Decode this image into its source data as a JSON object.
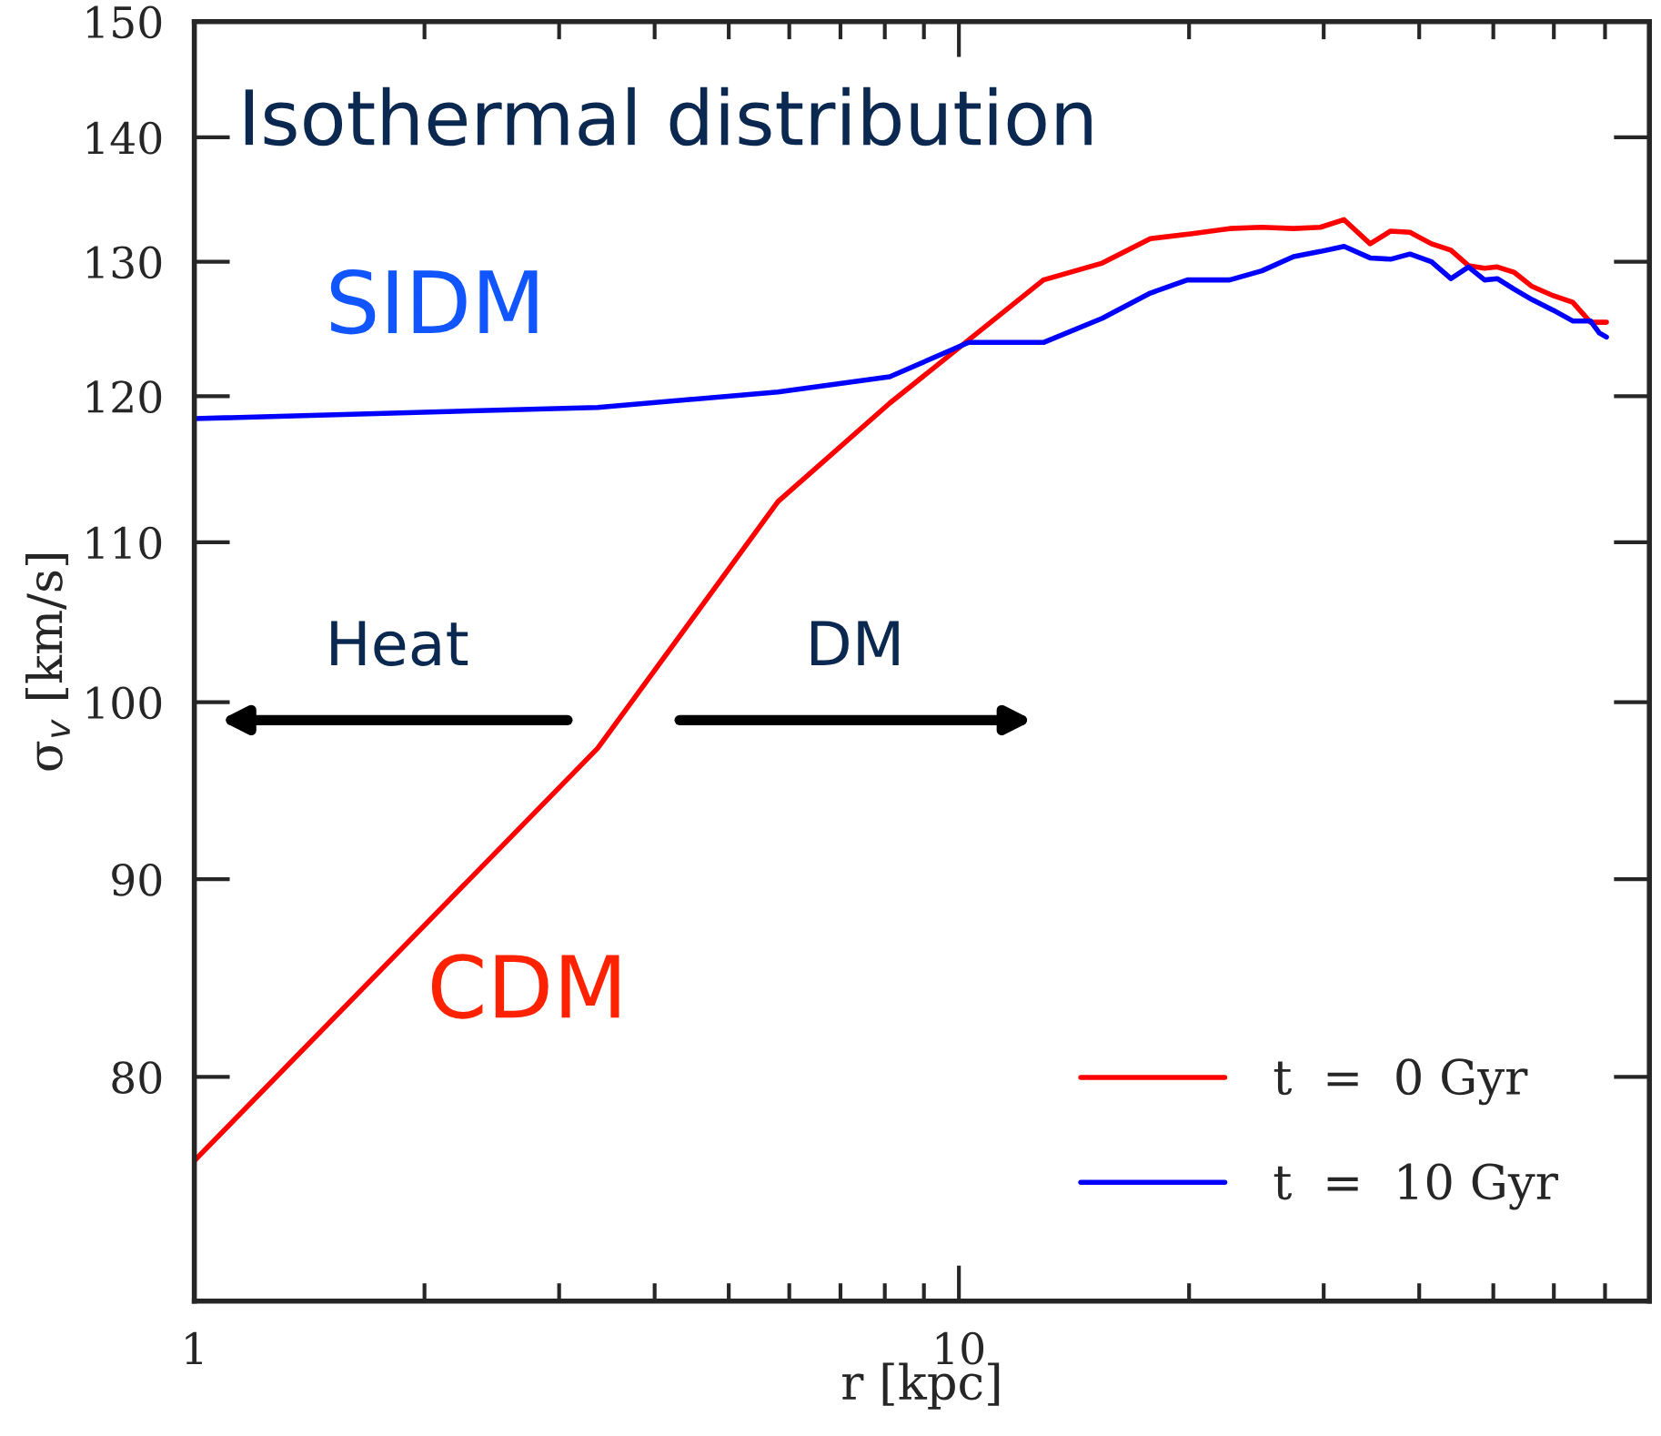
{
  "chart_data": {
    "type": "line",
    "xlabel": "r [kpc]",
    "ylabel": "σ$_{v}$ [km/s]",
    "log": "xy",
    "xlim": [
      1,
      80
    ],
    "ylim": [
      70,
      150
    ],
    "xticks": [
      1,
      {
        "value": 2,
        "label": null
      },
      {
        "value": 3,
        "label": null
      },
      {
        "value": 4,
        "label": null
      },
      {
        "value": 5,
        "label": null
      },
      {
        "value": 6,
        "label": null
      },
      {
        "value": 7,
        "label": null
      },
      {
        "value": 8,
        "label": null
      },
      {
        "value": 9,
        "label": null
      },
      10,
      {
        "value": 20,
        "label": null
      },
      {
        "value": 30,
        "label": null
      },
      {
        "value": 40,
        "label": null
      },
      {
        "value": 50,
        "label": null
      },
      {
        "value": 60,
        "label": null
      },
      {
        "value": 70,
        "label": null
      }
    ],
    "yticks": [
      80,
      90,
      100,
      110,
      120,
      130,
      140,
      150
    ],
    "grid": false,
    "legend": "bottom right",
    "marker": "none",
    "line_style": "solid",
    "annotations": [
      "Isothermal distribution",
      "SIDM",
      "CDM",
      "Heat",
      "DM"
    ],
    "series": [
      {
        "name": "t  =  0 Gyr",
        "color": "#ff0000",
        "x": [
          1,
          3.37,
          5.8,
          8.12,
          12.9,
          15.4,
          17.8,
          20.2,
          22.6,
          24.9,
          27.4,
          29.7,
          31.9,
          34.5,
          36.7,
          38.9,
          41.5,
          44.0,
          46.4,
          48.7,
          50.6,
          53.2,
          56.2,
          59.9,
          63.5,
          67.0,
          70.3
        ],
        "values": [
          76.1,
          97.3,
          112.7,
          119.5,
          128.6,
          129.9,
          131.8,
          132.2,
          132.6,
          132.7,
          132.6,
          132.7,
          133.3,
          131.4,
          132.4,
          132.3,
          131.4,
          130.9,
          129.7,
          129.5,
          129.6,
          129.2,
          128.1,
          127.4,
          126.9,
          125.4,
          125.4
        ]
      },
      {
        "name": "t  =  10 Gyr",
        "color": "#0000ff",
        "x": [
          1,
          3.37,
          5.8,
          8.12,
          10.3,
          12.9,
          15.4,
          17.8,
          19.9,
          22.6,
          24.9,
          27.4,
          29.7,
          31.9,
          34.5,
          36.7,
          38.9,
          41.5,
          44.0,
          46.4,
          48.7,
          50.6,
          53.2,
          56.2,
          59.9,
          63.5,
          67.0,
          68.8,
          70.3
        ],
        "values": [
          118.4,
          119.2,
          120.3,
          121.4,
          123.9,
          123.9,
          125.7,
          127.6,
          128.6,
          128.6,
          129.3,
          130.4,
          130.8,
          131.2,
          130.3,
          130.2,
          130.6,
          130.0,
          128.7,
          129.6,
          128.6,
          128.7,
          127.9,
          127.1,
          126.3,
          125.5,
          125.5,
          124.6,
          124.3
        ]
      }
    ]
  }
}
